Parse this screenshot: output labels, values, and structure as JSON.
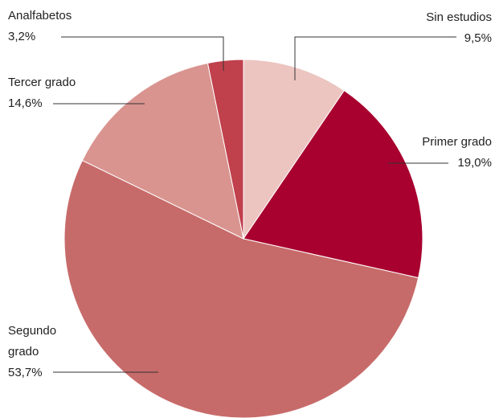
{
  "chart_data": {
    "type": "pie",
    "categories": [
      "Sin estudios",
      "Primer grado",
      "Segundo grado",
      "Tercer grado",
      "Analfabetos"
    ],
    "values": [
      9.5,
      19.0,
      53.7,
      14.6,
      3.2
    ],
    "value_labels": [
      "9,5%",
      "19,0%",
      "53,7%",
      "14,6%",
      "3,2%"
    ],
    "colors": [
      "#ecc5c0",
      "#a8002f",
      "#c76b6a",
      "#d9948f",
      "#c0404c"
    ]
  }
}
